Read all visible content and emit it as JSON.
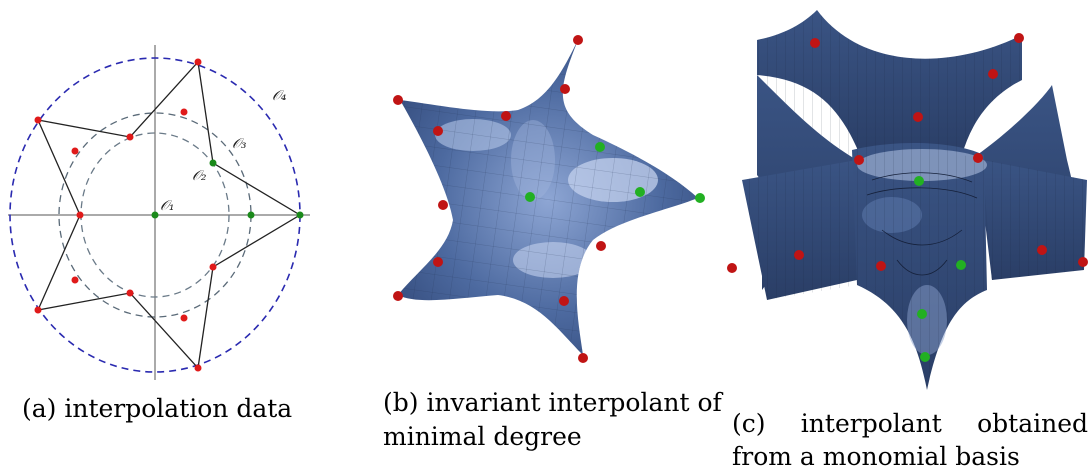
{
  "captions": {
    "a": "(a) interpolation data",
    "b_line1": "(b) invariant interpolant of",
    "b_line2": "minimal degree",
    "c_line1": "(c)  interpolant  obtained",
    "c_line2": "from a monomial basis"
  },
  "orbit_labels": {
    "o1": "𝒪₁",
    "o2": "𝒪₂",
    "o3": "𝒪₃",
    "o4": "𝒪₄"
  },
  "colors": {
    "interpolation_point_red": "#e01a1a",
    "interpolation_point_green": "#1a8a1a",
    "orbit_circle_outer": "#2a2ab0",
    "orbit_circle_inner": "#5a6a78",
    "surface_blue": "#3e5a8c",
    "surface_highlight": "#b8c8e8"
  }
}
